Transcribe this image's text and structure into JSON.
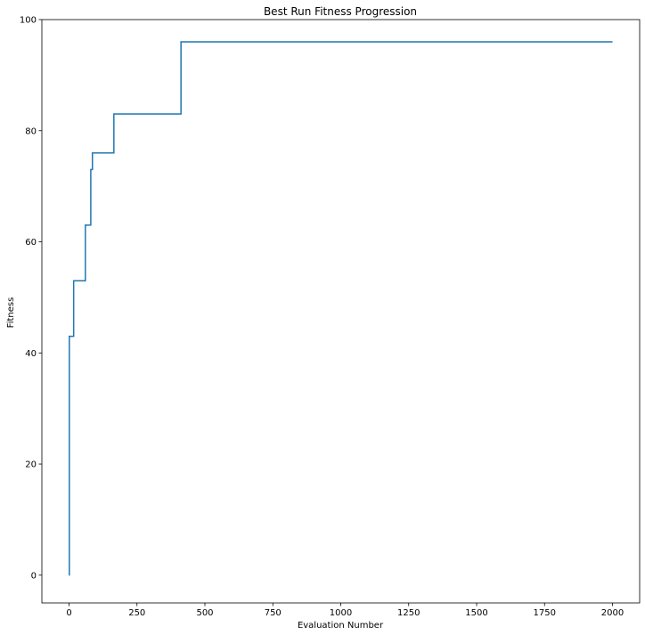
{
  "chart_data": {
    "type": "line",
    "title": "Best Run Fitness Progression",
    "xlabel": "Evaluation Number",
    "ylabel": "Fitness",
    "xlim": [
      -100,
      2100
    ],
    "ylim": [
      -5,
      100
    ],
    "xticks": [
      0,
      250,
      500,
      750,
      1000,
      1250,
      1500,
      1750,
      2000
    ],
    "yticks": [
      0,
      20,
      40,
      60,
      80,
      100
    ],
    "grid": false,
    "legend": "none",
    "step": "post",
    "series": [
      {
        "color": "#1f77b4",
        "points": [
          [
            0,
            0
          ],
          [
            1,
            43
          ],
          [
            16,
            43
          ],
          [
            17,
            53
          ],
          [
            59,
            53
          ],
          [
            60,
            63
          ],
          [
            79,
            63
          ],
          [
            80,
            73
          ],
          [
            85,
            73
          ],
          [
            86,
            76
          ],
          [
            164,
            76
          ],
          [
            165,
            83
          ],
          [
            411,
            83
          ],
          [
            412,
            96
          ],
          [
            2000,
            96
          ]
        ]
      }
    ]
  }
}
